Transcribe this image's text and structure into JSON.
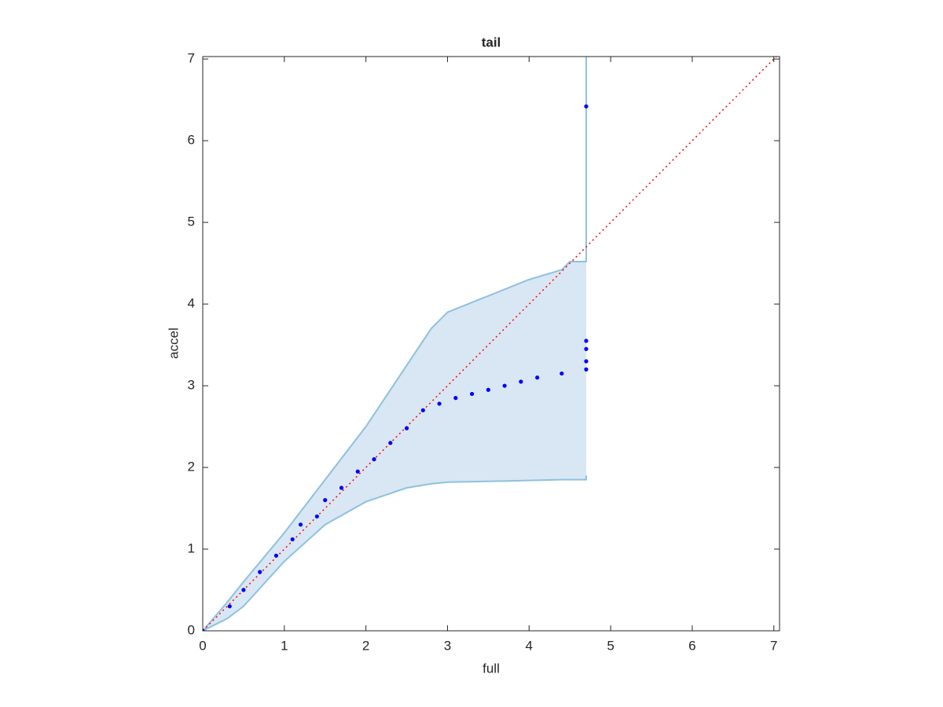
{
  "chart_data": {
    "type": "qq",
    "title": "tail",
    "xlabel": "full",
    "ylabel": "accel",
    "xlim": [
      0,
      7.07
    ],
    "ylim": [
      0,
      7.03
    ],
    "xticks": [
      0,
      1,
      2,
      3,
      4,
      5,
      6,
      7
    ],
    "yticks": [
      0,
      1,
      2,
      3,
      4,
      5,
      6,
      7
    ],
    "box": true,
    "points": {
      "color": "#0000ff",
      "x": [
        0,
        0.33,
        0.5,
        0.7,
        0.9,
        1.1,
        1.2,
        1.4,
        1.5,
        1.7,
        1.9,
        2.1,
        2.3,
        2.5,
        2.7,
        2.9,
        3.1,
        3.3,
        3.5,
        3.7,
        3.9,
        4.1,
        4.4,
        4.7,
        4.7,
        4.7,
        4.7,
        4.7
      ],
      "values": [
        0,
        0.3,
        0.5,
        0.72,
        0.92,
        1.12,
        1.3,
        1.4,
        1.6,
        1.75,
        1.95,
        2.1,
        2.3,
        2.48,
        2.7,
        2.78,
        2.85,
        2.9,
        2.95,
        3.0,
        3.05,
        3.1,
        3.15,
        3.2,
        3.3,
        3.45,
        3.55,
        6.42
      ]
    },
    "band": {
      "fill": "#d8e7f3",
      "color": "#8ec1e0",
      "x": [
        0,
        0.3,
        0.5,
        1,
        1.5,
        2,
        2.5,
        2.8,
        3,
        3.5,
        4,
        4.4,
        4.5,
        4.7,
        4.7
      ],
      "upper": [
        0,
        0.35,
        0.6,
        1.2,
        1.85,
        2.5,
        3.25,
        3.7,
        3.9,
        4.1,
        4.3,
        4.42,
        4.52,
        4.52,
        7.03
      ],
      "lower": [
        0,
        0.15,
        0.3,
        0.85,
        1.3,
        1.58,
        1.75,
        1.8,
        1.82,
        1.83,
        1.84,
        1.85,
        1.85,
        1.85,
        1.9
      ]
    },
    "reference": {
      "color": "#ff0000",
      "x": [
        0,
        7.07
      ],
      "values": [
        0,
        7.07
      ]
    }
  }
}
